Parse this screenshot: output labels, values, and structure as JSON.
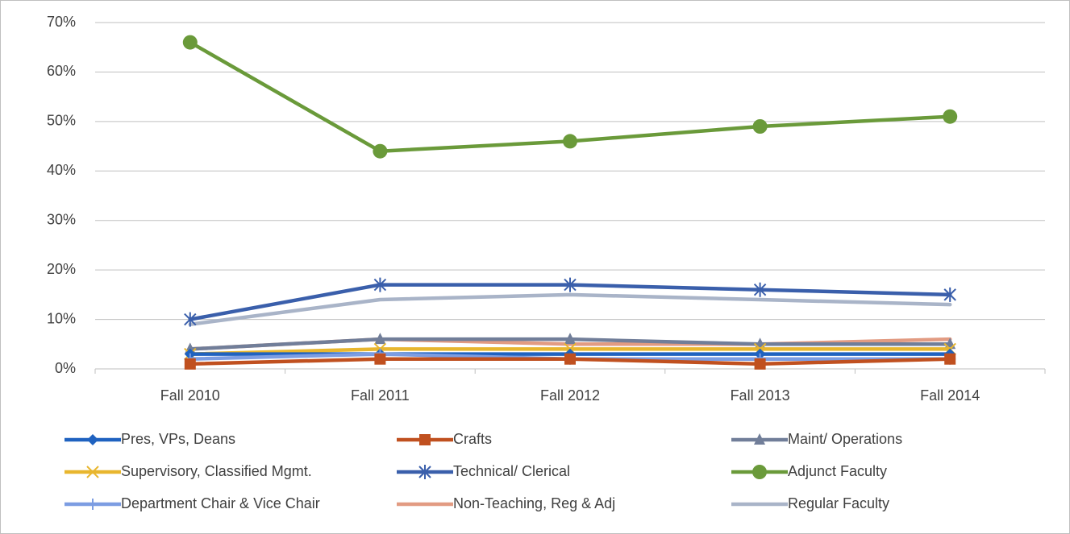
{
  "chart_data": {
    "type": "line",
    "categories": [
      "Fall 2010",
      "Fall 2011",
      "Fall 2012",
      "Fall 2013",
      "Fall 2014"
    ],
    "ylim": [
      0,
      70
    ],
    "yticks": [
      {
        "value": 0,
        "label": "0%"
      },
      {
        "value": 10,
        "label": "10%"
      },
      {
        "value": 20,
        "label": "20%"
      },
      {
        "value": 30,
        "label": "30%"
      },
      {
        "value": 40,
        "label": "40%"
      },
      {
        "value": 50,
        "label": "50%"
      },
      {
        "value": 60,
        "label": "60%"
      },
      {
        "value": 70,
        "label": "70%"
      }
    ],
    "grid": true,
    "legend": "bottom",
    "series": [
      {
        "name": "Pres, VPs, Deans",
        "color": "#1f62c0",
        "marker": "diamond",
        "values": [
          3,
          3,
          3,
          3,
          3
        ]
      },
      {
        "name": "Crafts",
        "color": "#c0501f",
        "marker": "square",
        "values": [
          1,
          2,
          2,
          1,
          2
        ]
      },
      {
        "name": "Maint/ Operations",
        "color": "#717e99",
        "marker": "triangle",
        "values": [
          4,
          6,
          6,
          5,
          5
        ]
      },
      {
        "name": "Supervisory, Classified Mgmt.",
        "color": "#e8b62e",
        "marker": "x",
        "values": [
          3,
          4,
          4,
          4,
          4
        ]
      },
      {
        "name": "Technical/ Clerical",
        "color": "#3a5fab",
        "marker": "star",
        "values": [
          10,
          17,
          17,
          16,
          15
        ]
      },
      {
        "name": "Adjunct Faculty",
        "color": "#6a9a3a",
        "marker": "circle",
        "values": [
          66,
          44,
          46,
          49,
          51
        ]
      },
      {
        "name": "Department Chair & Vice Chair",
        "color": "#7c9de2",
        "marker": "plus",
        "values": [
          2,
          3,
          2,
          2,
          2
        ]
      },
      {
        "name": "Non-Teaching, Reg & Adj",
        "color": "#e29b82",
        "marker": "none",
        "values": [
          4,
          6,
          5,
          5,
          6
        ]
      },
      {
        "name": "Regular Faculty",
        "color": "#a9b4c8",
        "marker": "none",
        "values": [
          9,
          14,
          15,
          14,
          13
        ]
      }
    ]
  }
}
